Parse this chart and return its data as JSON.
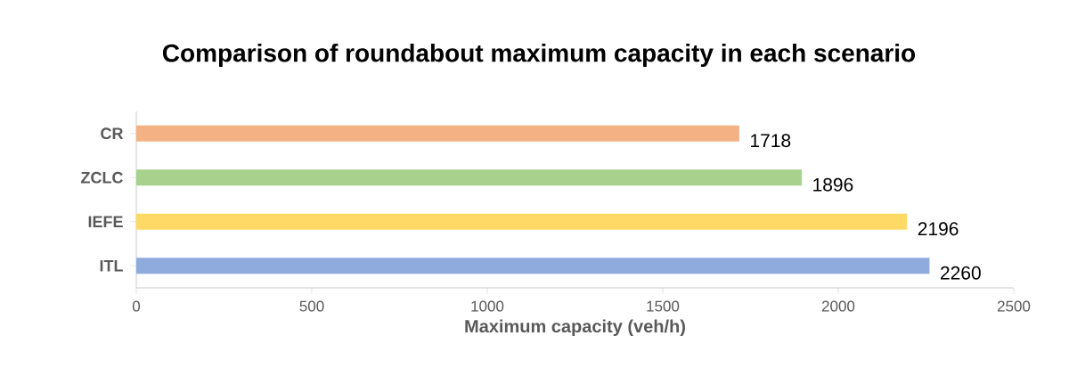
{
  "chart_data": {
    "type": "bar",
    "orientation": "horizontal",
    "title": "Comparison of roundabout maximum capacity in each scenario",
    "xlabel": "Maximum capacity (veh/h)",
    "categories": [
      "CR",
      "ZCLC",
      "IEFE",
      "ITL"
    ],
    "values": [
      1718,
      1896,
      2196,
      2260
    ],
    "colors": [
      "#f4b183",
      "#a9d18e",
      "#ffd966",
      "#8faadc"
    ],
    "xlim": [
      0,
      2500
    ],
    "xticks": [
      0,
      500,
      1000,
      1500,
      2000,
      2500
    ],
    "data_labels": true
  }
}
